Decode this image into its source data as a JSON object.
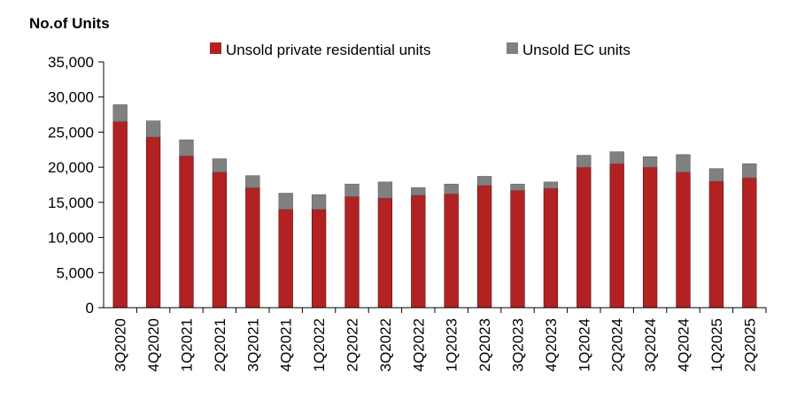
{
  "chart_data": {
    "type": "bar",
    "stacked": true,
    "ylabel": "No.of Units",
    "ylim": [
      0,
      35000
    ],
    "ytick_step": 5000,
    "ytick_labels": [
      "0",
      "5,000",
      "10,000",
      "15,000",
      "20,000",
      "25,000",
      "30,000",
      "35,000"
    ],
    "legend_position": "top-center",
    "categories": [
      "3Q2020",
      "4Q2020",
      "1Q2021",
      "2Q2021",
      "3Q2021",
      "4Q2021",
      "1Q2022",
      "2Q2022",
      "3Q2022",
      "4Q2022",
      "1Q2023",
      "2Q2023",
      "3Q2023",
      "4Q2023",
      "1Q2024",
      "2Q2024",
      "3Q2024",
      "4Q2024",
      "1Q2025",
      "2Q2025"
    ],
    "series": [
      {
        "name": "Unsold private residential units",
        "color": "#b22222",
        "values": [
          26500,
          24300,
          21600,
          19300,
          17100,
          14000,
          14000,
          15800,
          15600,
          16000,
          16200,
          17400,
          16700,
          17000,
          20000,
          20500,
          20000,
          19300,
          18000,
          18500
        ]
      },
      {
        "name": "Unsold EC units",
        "color": "#808080",
        "values": [
          2400,
          2300,
          2300,
          1900,
          1700,
          2300,
          2100,
          1800,
          2300,
          1100,
          1400,
          1300,
          900,
          900,
          1700,
          1700,
          1500,
          2500,
          1800,
          2000
        ]
      }
    ]
  }
}
